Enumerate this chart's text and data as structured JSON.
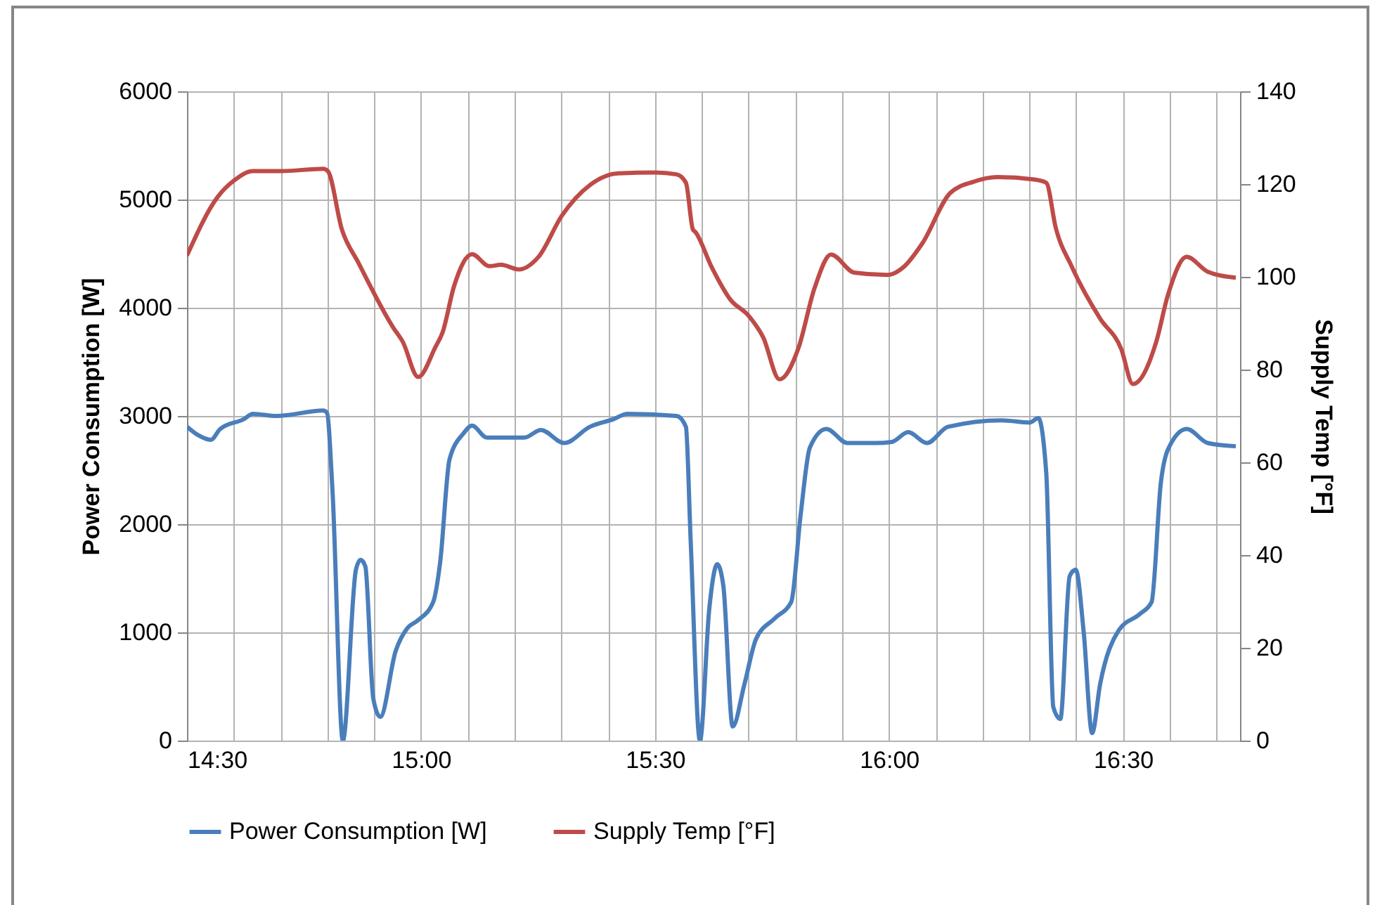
{
  "chart_data": {
    "type": "line",
    "xlabel": null,
    "ylabel": "Power Consumption [W]",
    "y2label": "Supply Temp [°F]",
    "xlim": [
      14.5,
      16.75
    ],
    "xticks": [
      {
        "value": 14.5,
        "label": "14:30"
      },
      {
        "value": 14.6,
        "label": null
      },
      {
        "value": 14.7,
        "label": null
      },
      {
        "value": 14.8,
        "label": null
      },
      {
        "value": 14.9,
        "label": null
      },
      {
        "value": 15,
        "label": "15:00"
      },
      {
        "value": 15.1,
        "label": null
      },
      {
        "value": 15.2,
        "label": null
      },
      {
        "value": 15.3,
        "label": null
      },
      {
        "value": 15.4,
        "label": null
      },
      {
        "value": 15.5,
        "label": "15:30"
      },
      {
        "value": 15.6,
        "label": null
      },
      {
        "value": 15.7,
        "label": null
      },
      {
        "value": 15.8,
        "label": null
      },
      {
        "value": 15.9,
        "label": null
      },
      {
        "value": 16,
        "label": "16:00"
      },
      {
        "value": 16.1,
        "label": null
      },
      {
        "value": 16.2,
        "label": null
      },
      {
        "value": 16.3,
        "label": null
      },
      {
        "value": 16.4,
        "label": null
      },
      {
        "value": 16.5,
        "label": "16:30"
      },
      {
        "value": 16.6,
        "label": null
      },
      {
        "value": 16.7,
        "label": null
      }
    ],
    "ylim": [
      0,
      6000
    ],
    "yticks": [
      0,
      1000,
      2000,
      3000,
      4000,
      5000,
      6000
    ],
    "y2lim": [
      0,
      140
    ],
    "y2ticks": [
      0,
      20,
      40,
      60,
      80,
      100,
      120,
      140
    ],
    "grid": true,
    "legend": "bottom",
    "line_style": "solid",
    "marker": "none",
    "series": [
      {
        "name": "Power Consumption [W]",
        "color": "#4a7ebb",
        "x": [
          14.5,
          14.521,
          14.551,
          14.571,
          14.621,
          14.641,
          14.691,
          14.791,
          14.799,
          14.811,
          14.833,
          14.861,
          14.871,
          14.881,
          14.898,
          14.913,
          14.946,
          14.971,
          14.993,
          15.026,
          15.041,
          15.061,
          15.091,
          15.109,
          15.141,
          15.191,
          15.221,
          15.256,
          15.306,
          15.361,
          15.411,
          15.441,
          15.546,
          15.566,
          15.576,
          15.596,
          15.616,
          15.633,
          15.646,
          15.666,
          15.691,
          15.716,
          15.756,
          15.791,
          15.811,
          15.831,
          15.866,
          15.911,
          15.971,
          16.006,
          16.041,
          16.081,
          16.126,
          16.241,
          16.301,
          16.319,
          16.336,
          16.351,
          16.366,
          16.386,
          16.399,
          16.416,
          16.434,
          16.451,
          16.491,
          16.536,
          16.561,
          16.581,
          16.596,
          16.636,
          16.681,
          16.741
        ],
        "values": [
          2900,
          2830,
          2780,
          2880,
          2970,
          3020,
          3000,
          3050,
          3030,
          2300,
          0,
          1580,
          1670,
          1610,
          390,
          220,
          830,
          1040,
          1110,
          1280,
          1650,
          2600,
          2840,
          2910,
          2800,
          2800,
          2800,
          2870,
          2750,
          2900,
          2970,
          3020,
          3000,
          2900,
          1870,
          0,
          1220,
          1630,
          1430,
          130,
          520,
          940,
          1130,
          1280,
          2080,
          2710,
          2880,
          2750,
          2750,
          2760,
          2850,
          2750,
          2900,
          2960,
          2940,
          2980,
          2470,
          310,
          200,
          1520,
          1580,
          1000,
          70,
          520,
          1020,
          1170,
          1280,
          2390,
          2690,
          2880,
          2750,
          2720
        ]
      },
      {
        "name": "Supply Temp [°F]",
        "color": "#be4b48",
        "axis": "y2",
        "x": [
          14.5,
          14.566,
          14.601,
          14.641,
          14.701,
          14.791,
          14.801,
          14.831,
          14.866,
          14.941,
          14.961,
          14.994,
          15.031,
          15.046,
          15.071,
          15.109,
          15.146,
          15.171,
          15.209,
          15.251,
          15.301,
          15.361,
          15.421,
          15.501,
          15.546,
          15.566,
          15.581,
          15.586,
          15.621,
          15.661,
          15.701,
          15.731,
          15.766,
          15.806,
          15.841,
          15.876,
          15.926,
          15.996,
          16.031,
          16.071,
          16.131,
          16.181,
          16.231,
          16.311,
          16.336,
          16.356,
          16.391,
          16.451,
          16.496,
          16.521,
          16.571,
          16.596,
          16.636,
          16.681,
          16.741
        ],
        "values": [
          104.6,
          117.3,
          120.8,
          122.8,
          122.8,
          123.3,
          122.8,
          110.2,
          103.1,
          89,
          86,
          78.4,
          84.9,
          88,
          98.1,
          104.9,
          102.3,
          102.6,
          101.6,
          104.3,
          113.2,
          119.8,
          122.3,
          122.5,
          122.1,
          120.3,
          110.2,
          109.7,
          102.1,
          95.1,
          91.5,
          87,
          77.9,
          84.5,
          97.6,
          104.8,
          100.9,
          100.4,
          102.1,
          107.2,
          118.1,
          120.5,
          121.5,
          121,
          120.3,
          110.7,
          102.1,
          91,
          84.5,
          76.9,
          86,
          96.1,
          104.3,
          101.1,
          99.8
        ]
      }
    ]
  }
}
